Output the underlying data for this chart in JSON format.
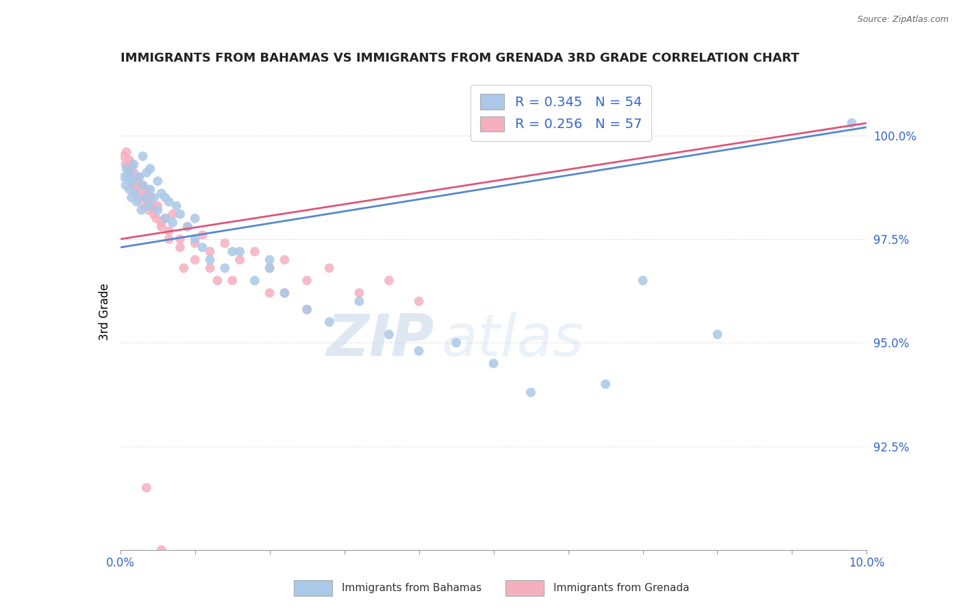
{
  "title": "IMMIGRANTS FROM BAHAMAS VS IMMIGRANTS FROM GRENADA 3RD GRADE CORRELATION CHART",
  "source": "Source: ZipAtlas.com",
  "ylabel": "3rd Grade",
  "x_min": 0.0,
  "x_max": 10.0,
  "y_min": 90.0,
  "y_max": 101.5,
  "blue_color": "#aac8e8",
  "pink_color": "#f5b0c0",
  "blue_line_color": "#5588cc",
  "pink_line_color": "#dd5577",
  "R_blue": 0.345,
  "N_blue": 54,
  "R_pink": 0.256,
  "N_pink": 57,
  "legend_label_blue": "Immigrants from Bahamas",
  "legend_label_pink": "Immigrants from Grenada",
  "watermark": "ZIPatlas",
  "blue_x": [
    0.05,
    0.07,
    0.08,
    0.1,
    0.12,
    0.13,
    0.15,
    0.17,
    0.18,
    0.2,
    0.22,
    0.25,
    0.28,
    0.3,
    0.33,
    0.35,
    0.38,
    0.4,
    0.45,
    0.5,
    0.55,
    0.6,
    0.65,
    0.7,
    0.8,
    0.9,
    1.0,
    1.1,
    1.2,
    1.4,
    1.6,
    1.8,
    2.0,
    2.2,
    2.5,
    2.8,
    3.2,
    3.6,
    4.0,
    4.5,
    5.0,
    5.5,
    6.5,
    7.0,
    8.0,
    9.8,
    0.3,
    0.4,
    0.5,
    0.6,
    0.75,
    1.0,
    1.5,
    2.0
  ],
  "blue_y": [
    99.0,
    98.8,
    99.2,
    99.0,
    98.7,
    99.1,
    98.5,
    98.9,
    99.3,
    98.6,
    98.4,
    99.0,
    98.2,
    98.8,
    98.5,
    99.1,
    98.3,
    98.7,
    98.5,
    98.2,
    98.6,
    98.0,
    98.4,
    97.9,
    98.1,
    97.8,
    97.5,
    97.3,
    97.0,
    96.8,
    97.2,
    96.5,
    97.0,
    96.2,
    95.8,
    95.5,
    96.0,
    95.2,
    94.8,
    95.0,
    94.5,
    93.8,
    94.0,
    96.5,
    95.2,
    100.3,
    99.5,
    99.2,
    98.9,
    98.5,
    98.3,
    98.0,
    97.2,
    96.8
  ],
  "pink_x": [
    0.05,
    0.07,
    0.08,
    0.1,
    0.12,
    0.13,
    0.15,
    0.17,
    0.18,
    0.2,
    0.22,
    0.25,
    0.28,
    0.3,
    0.33,
    0.35,
    0.38,
    0.4,
    0.45,
    0.5,
    0.55,
    0.6,
    0.65,
    0.7,
    0.8,
    0.9,
    1.0,
    1.1,
    1.2,
    1.4,
    1.6,
    1.8,
    2.0,
    2.2,
    2.5,
    2.8,
    3.2,
    3.6,
    4.0,
    0.25,
    0.3,
    0.35,
    0.42,
    0.48,
    0.55,
    0.65,
    0.8,
    1.0,
    1.2,
    1.5,
    2.0,
    2.5,
    0.35,
    0.55,
    0.85,
    1.3,
    2.2
  ],
  "pink_y": [
    99.5,
    99.3,
    99.6,
    99.2,
    99.4,
    99.0,
    99.3,
    98.8,
    99.1,
    98.7,
    98.9,
    98.5,
    98.8,
    98.6,
    98.3,
    98.7,
    98.2,
    98.5,
    98.1,
    98.3,
    97.9,
    98.0,
    97.7,
    98.1,
    97.5,
    97.8,
    97.4,
    97.6,
    97.2,
    97.4,
    97.0,
    97.2,
    96.8,
    97.0,
    96.5,
    96.8,
    96.2,
    96.5,
    96.0,
    99.0,
    98.8,
    98.5,
    98.3,
    98.0,
    97.8,
    97.5,
    97.3,
    97.0,
    96.8,
    96.5,
    96.2,
    95.8,
    91.5,
    90.0,
    96.8,
    96.5,
    96.2
  ],
  "blue_trend_x": [
    0.0,
    10.0
  ],
  "blue_trend_y": [
    97.3,
    100.2
  ],
  "pink_trend_x": [
    0.0,
    10.0
  ],
  "pink_trend_y": [
    97.5,
    100.3
  ]
}
